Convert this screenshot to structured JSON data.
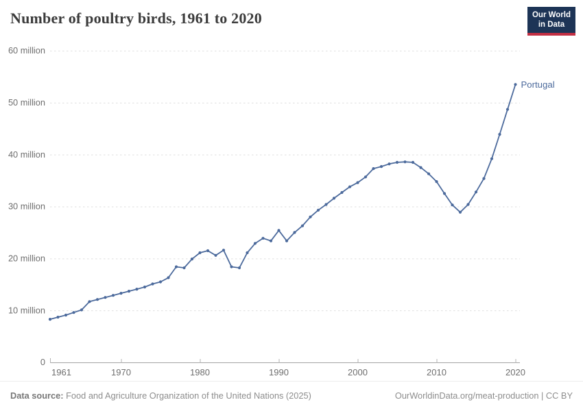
{
  "header": {
    "title": "Number of poultry birds, 1961 to 2020"
  },
  "logo": {
    "line1": "Our World",
    "line2": "in Data"
  },
  "chart_data": {
    "type": "line",
    "title": "Number of poultry birds, 1961 to 2020",
    "entity": "Portugal",
    "unit": "million birds",
    "x": [
      1961,
      1962,
      1963,
      1964,
      1965,
      1966,
      1967,
      1968,
      1969,
      1970,
      1971,
      1972,
      1973,
      1974,
      1975,
      1976,
      1977,
      1978,
      1979,
      1980,
      1981,
      1982,
      1983,
      1984,
      1985,
      1986,
      1987,
      1988,
      1989,
      1990,
      1991,
      1992,
      1993,
      1994,
      1995,
      1996,
      1997,
      1998,
      1999,
      2000,
      2001,
      2002,
      2003,
      2004,
      2005,
      2006,
      2007,
      2008,
      2009,
      2010,
      2011,
      2012,
      2013,
      2014,
      2015,
      2016,
      2017,
      2018,
      2019,
      2020
    ],
    "series": [
      {
        "name": "Portugal",
        "values_millions": [
          8.3,
          8.7,
          9.1,
          9.6,
          10.1,
          11.7,
          12.1,
          12.5,
          12.9,
          13.3,
          13.7,
          14.1,
          14.5,
          15.1,
          15.5,
          16.3,
          18.4,
          18.2,
          19.9,
          21.1,
          21.5,
          20.6,
          21.6,
          18.4,
          18.2,
          21.1,
          22.9,
          23.9,
          23.4,
          25.4,
          23.4,
          25.0,
          26.3,
          28.0,
          29.3,
          30.4,
          31.6,
          32.7,
          33.8,
          34.6,
          35.7,
          37.3,
          37.7,
          38.2,
          38.5,
          38.6,
          38.5,
          37.5,
          36.3,
          34.8,
          32.5,
          30.3,
          28.9,
          30.4,
          32.8,
          35.4,
          39.2,
          43.9,
          48.7,
          53.5
        ]
      }
    ],
    "ylim": [
      0,
      60
    ],
    "yticks": [
      0,
      10,
      20,
      30,
      40,
      50,
      60
    ],
    "ytick_labels": [
      "0",
      "10 million",
      "20 million",
      "30 million",
      "40 million",
      "50 million",
      "60 million"
    ],
    "xticks": [
      1961,
      1970,
      1980,
      1990,
      2000,
      2010,
      2020
    ],
    "grid": true,
    "legend": "end-of-line label",
    "colors": {
      "line": "#4c6a9c",
      "grid": "#dedede",
      "axis": "#a3a3a3",
      "tick_text": "#6d6d6d",
      "logo_bg": "#1d3456",
      "logo_accent": "#c22f43"
    }
  },
  "footer": {
    "source_label": "Data source:",
    "source": "Food and Agriculture Organization of the United Nations (2025)",
    "attribution": "OurWorldinData.org/meat-production | CC BY"
  }
}
